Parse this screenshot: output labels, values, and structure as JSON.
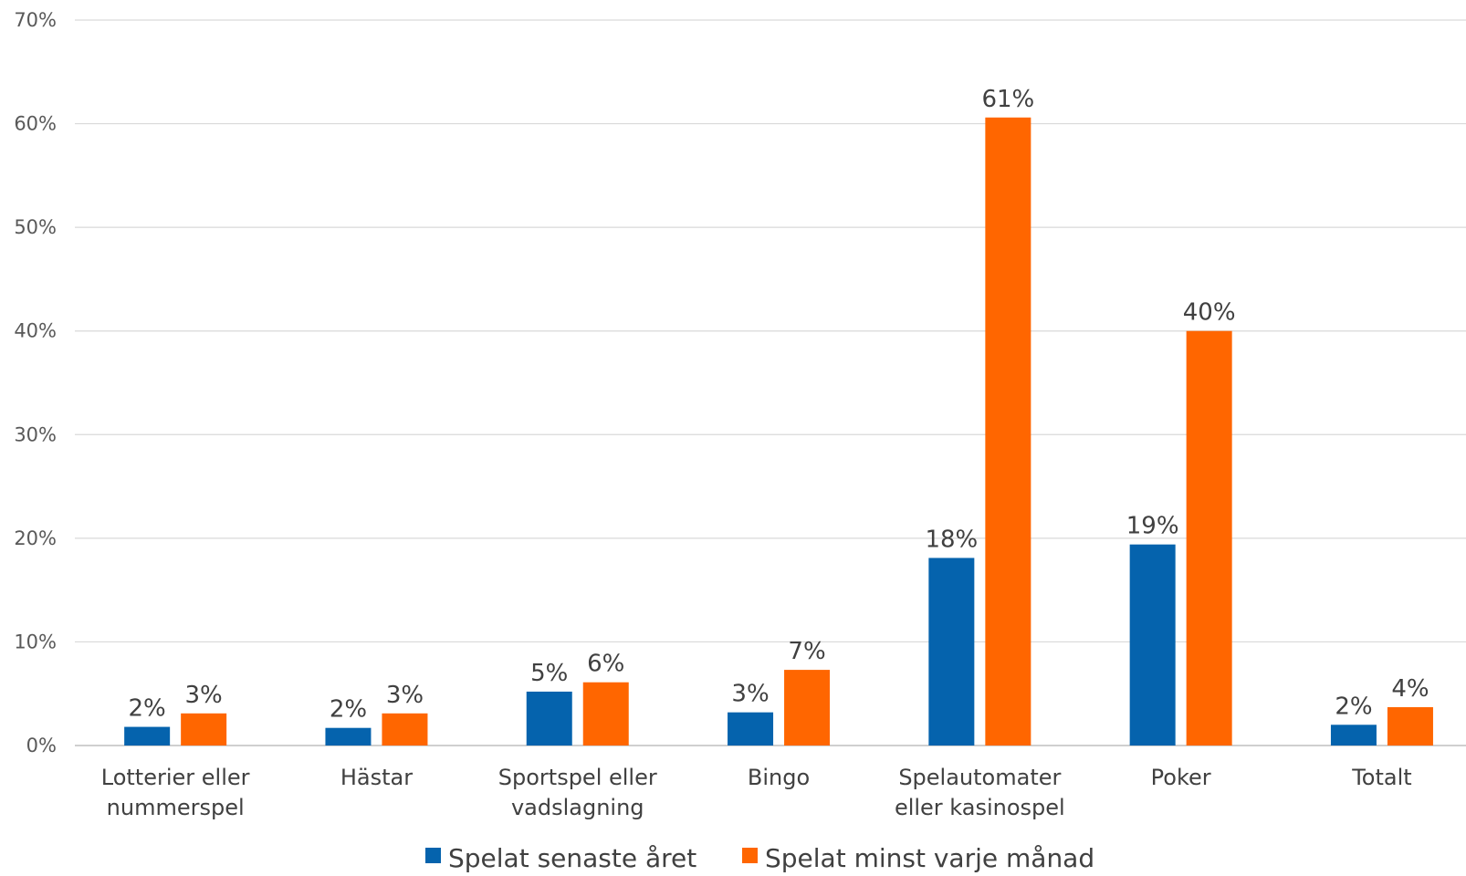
{
  "chart_data": {
    "type": "bar",
    "title": "",
    "xlabel": "",
    "ylabel": "",
    "ylim": [
      0,
      70
    ],
    "yticks": [
      "0%",
      "10%",
      "20%",
      "30%",
      "40%",
      "50%",
      "60%",
      "70%"
    ],
    "grid": true,
    "legend_position": "bottom",
    "categories": [
      "Lotterier eller nummerspel",
      "Hästar",
      "Sportspel eller vadslagning",
      "Bingo",
      "Spelautomater eller kasinospel",
      "Poker",
      "Totalt"
    ],
    "category_lines": [
      [
        "Lotterier eller",
        "nummerspel"
      ],
      [
        "Hästar"
      ],
      [
        "Sportspel eller",
        "vadslagning"
      ],
      [
        "Bingo"
      ],
      [
        "Spelautomater",
        "eller kasinospel"
      ],
      [
        "Poker"
      ],
      [
        "Totalt"
      ]
    ],
    "series": [
      {
        "name": "Spelat senaste året",
        "color": "#0563ad",
        "values": [
          1.8,
          1.7,
          5.2,
          3.2,
          18.1,
          19.4,
          2.0
        ],
        "labels": [
          "2%",
          "2%",
          "5%",
          "3%",
          "18%",
          "19%",
          "2%"
        ]
      },
      {
        "name": "Spelat minst varje månad",
        "color": "#ff6600",
        "values": [
          3.1,
          3.1,
          6.1,
          7.3,
          60.6,
          40.0,
          3.7
        ],
        "labels": [
          "3%",
          "3%",
          "6%",
          "7%",
          "61%",
          "40%",
          "4%"
        ]
      }
    ]
  }
}
